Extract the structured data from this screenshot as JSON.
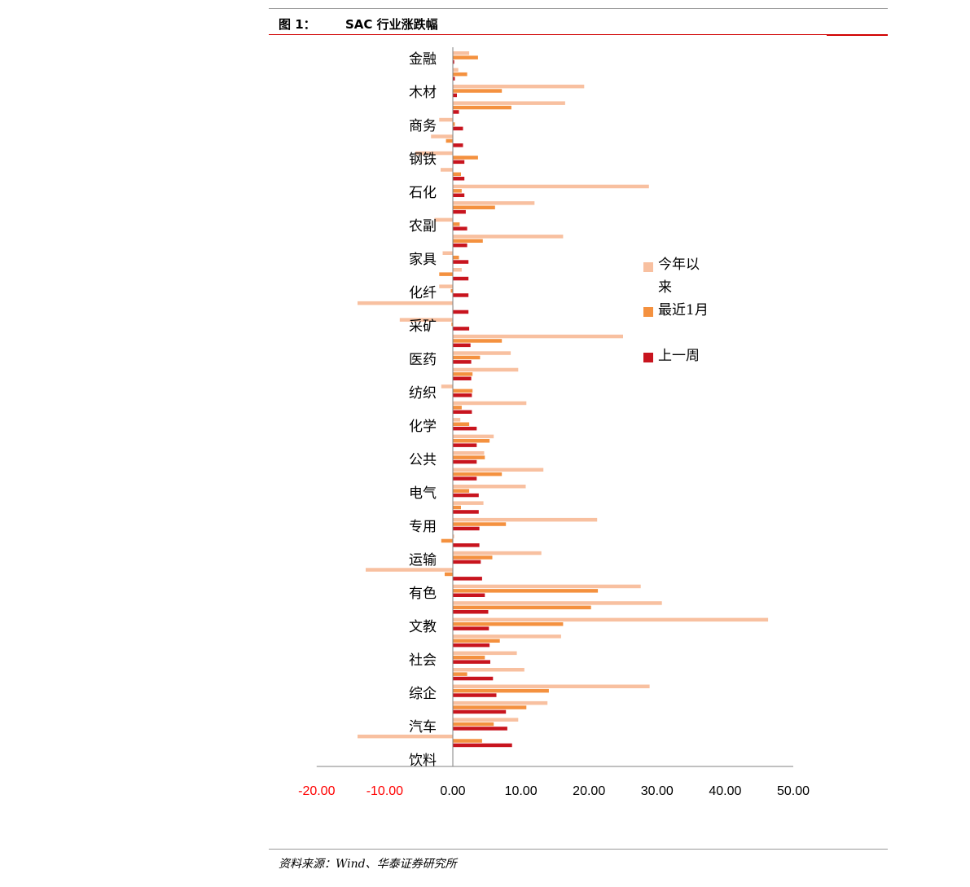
{
  "figure": {
    "label": "图 1：",
    "title": "SAC 行业涨跌幅",
    "source": "资料来源：Wind、华泰证券研究所"
  },
  "colors": {
    "ytd": "#F8C0A0",
    "month": "#F4913F",
    "week": "#C8141E",
    "negative_tick": "#FF0000",
    "positive_tick": "#000000",
    "axis": "#808080",
    "rule": "#D00000"
  },
  "chart_data": {
    "type": "bar",
    "orientation": "horizontal",
    "title": "SAC 行业涨跌幅",
    "xlim": [
      -20,
      50
    ],
    "xticks": [
      -20,
      -10,
      0,
      10,
      20,
      30,
      40,
      50
    ],
    "xtick_labels": [
      "-20.00",
      "-10.00",
      "0.00",
      "10.00",
      "20.00",
      "30.00",
      "40.00",
      "50.00"
    ],
    "categories_shown": [
      "金融",
      "木材",
      "商务",
      "钢铁",
      "石化",
      "农副",
      "家具",
      "化纤",
      "采矿",
      "医药",
      "纺织",
      "化学",
      "公共",
      "电气",
      "专用",
      "运输",
      "有色",
      "文教",
      "社会",
      "综企",
      "汽车",
      "饮料"
    ],
    "legend_position": "right",
    "series": [
      {
        "name": "今年以来",
        "color": "#F8C0A0",
        "values": [
          2.4,
          0.8,
          19.3,
          16.5,
          -2.0,
          -3.2,
          -5.5,
          -1.8,
          28.8,
          12.0,
          -2.7,
          16.2,
          -1.5,
          1.3,
          -2.0,
          -14.0,
          -7.8,
          25.0,
          8.5,
          9.6,
          -1.7,
          10.8,
          1.1,
          6.0,
          4.6,
          13.3,
          10.7,
          4.5,
          21.2,
          0.2,
          13.0,
          -12.8,
          27.6,
          30.7,
          46.3,
          15.9,
          9.4,
          10.5,
          28.9,
          13.9,
          9.6,
          -14.0
        ]
      },
      {
        "name": "最近1月",
        "color": "#F4913F",
        "values": [
          3.7,
          2.1,
          7.2,
          8.6,
          0.3,
          -1.0,
          3.7,
          1.2,
          1.3,
          6.2,
          1.0,
          4.4,
          0.9,
          -2.0,
          -0.3,
          0.0,
          -0.2,
          7.2,
          4.0,
          2.9,
          2.9,
          1.3,
          2.4,
          5.4,
          4.7,
          7.2,
          2.4,
          1.2,
          7.8,
          -1.7,
          5.8,
          -1.2,
          21.3,
          20.3,
          16.2,
          6.9,
          4.7,
          2.1,
          14.1,
          10.8,
          6.0,
          4.3
        ]
      },
      {
        "name": "上一周",
        "color": "#C8141E",
        "values": [
          0.2,
          0.3,
          0.6,
          0.9,
          1.5,
          1.5,
          1.7,
          1.7,
          1.7,
          1.9,
          2.1,
          2.1,
          2.3,
          2.3,
          2.3,
          2.3,
          2.4,
          2.6,
          2.7,
          2.7,
          2.8,
          2.8,
          3.5,
          3.5,
          3.5,
          3.5,
          3.8,
          3.8,
          3.9,
          3.9,
          4.1,
          4.3,
          4.7,
          5.2,
          5.3,
          5.4,
          5.5,
          5.9,
          6.4,
          7.8,
          8.0,
          8.7
        ]
      }
    ]
  }
}
